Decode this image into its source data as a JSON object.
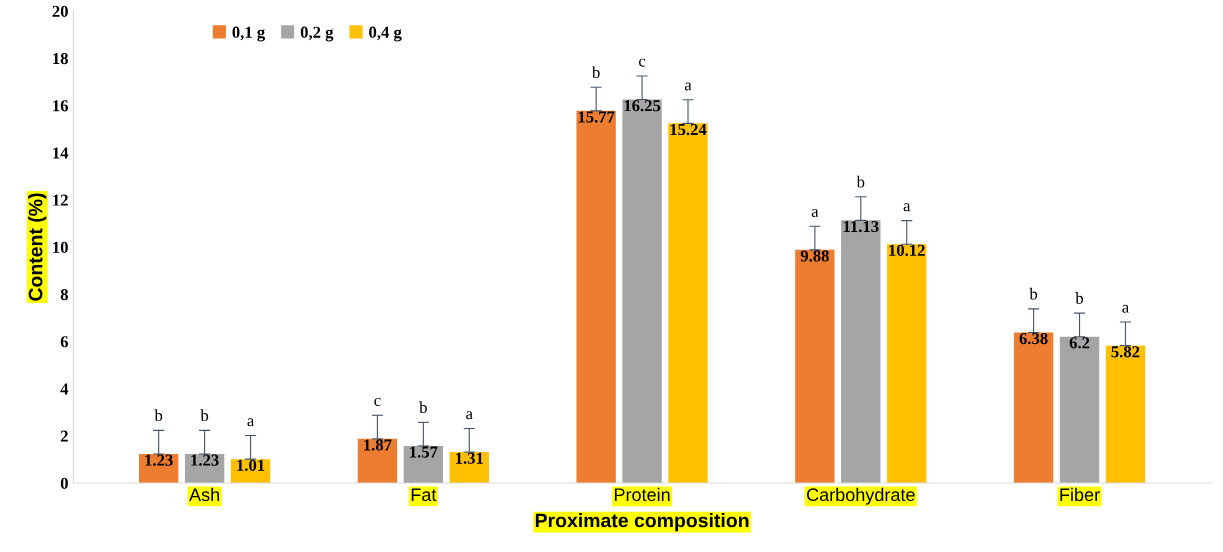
{
  "chart_data": {
    "type": "bar",
    "xlabel": "Proximate composition",
    "ylabel": "Content (%)",
    "categories": [
      "Ash",
      "Fat",
      "Protein",
      "Carbohydrate",
      "Fiber"
    ],
    "series": [
      {
        "name": "0,1 g",
        "color": "#ed7d31",
        "values": [
          1.23,
          1.87,
          15.77,
          9.88,
          6.38
        ],
        "errors": [
          [
            1.23,
            2.23
          ],
          [
            1.87,
            2.87
          ],
          [
            15.77,
            16.77
          ],
          [
            9.88,
            10.88
          ],
          [
            6.38,
            7.38
          ]
        ]
      },
      {
        "name": "0,2 g",
        "color": "#a5a5a5",
        "values": [
          1.23,
          1.57,
          16.25,
          11.13,
          6.2
        ],
        "errors": [
          [
            1.23,
            2.23
          ],
          [
            1.57,
            2.57
          ],
          [
            16.25,
            17.25
          ],
          [
            11.13,
            12.13
          ],
          [
            6.2,
            7.2
          ]
        ]
      },
      {
        "name": "0,4 g",
        "color": "#ffc000",
        "values": [
          1.01,
          1.31,
          15.24,
          10.12,
          5.82
        ],
        "errors": [
          [
            1.01,
            2.01
          ],
          [
            1.31,
            2.31
          ],
          [
            15.24,
            16.24
          ],
          [
            10.12,
            11.12
          ],
          [
            5.82,
            6.82
          ]
        ]
      }
    ],
    "annotations": [
      "b",
      "b",
      "a",
      "c",
      "b",
      "a",
      "b",
      "c",
      "a",
      "a",
      "b",
      "a",
      "b",
      "b",
      "a"
    ],
    "ylim": [
      0,
      20
    ],
    "yticks": [
      0,
      2,
      4,
      6,
      8,
      10,
      12,
      14,
      16,
      18,
      20
    ],
    "data_labels": true,
    "legend": "top left",
    "grid": false
  }
}
